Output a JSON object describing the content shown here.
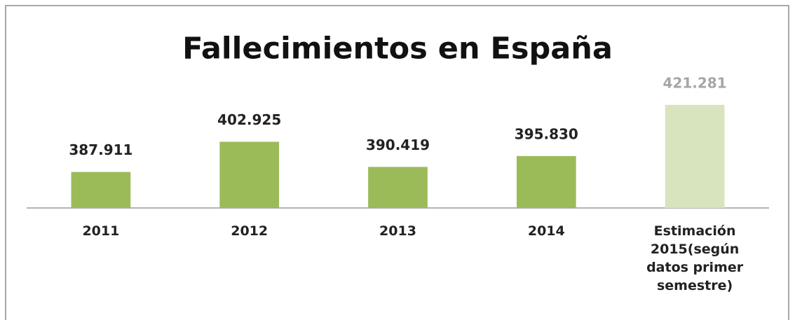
{
  "chart_data": {
    "type": "bar",
    "title": "Fallecimientos en España",
    "categories": [
      "2011",
      "2012",
      "2013",
      "2014",
      "Estimación\n2015(según\ndatos primer\nsemestre)"
    ],
    "values": [
      387911,
      402925,
      390419,
      395830,
      421281
    ],
    "value_labels": [
      "387.911",
      "402.925",
      "390.419",
      "395.830",
      "421.281"
    ],
    "colors": [
      "#9bbb59",
      "#9bbb59",
      "#9bbb59",
      "#9bbb59",
      "#d7e4bd"
    ],
    "label_colors": [
      "#222222",
      "#222222",
      "#222222",
      "#222222",
      "#a6a6a6"
    ],
    "ylim": [
      370000,
      440000
    ]
  }
}
